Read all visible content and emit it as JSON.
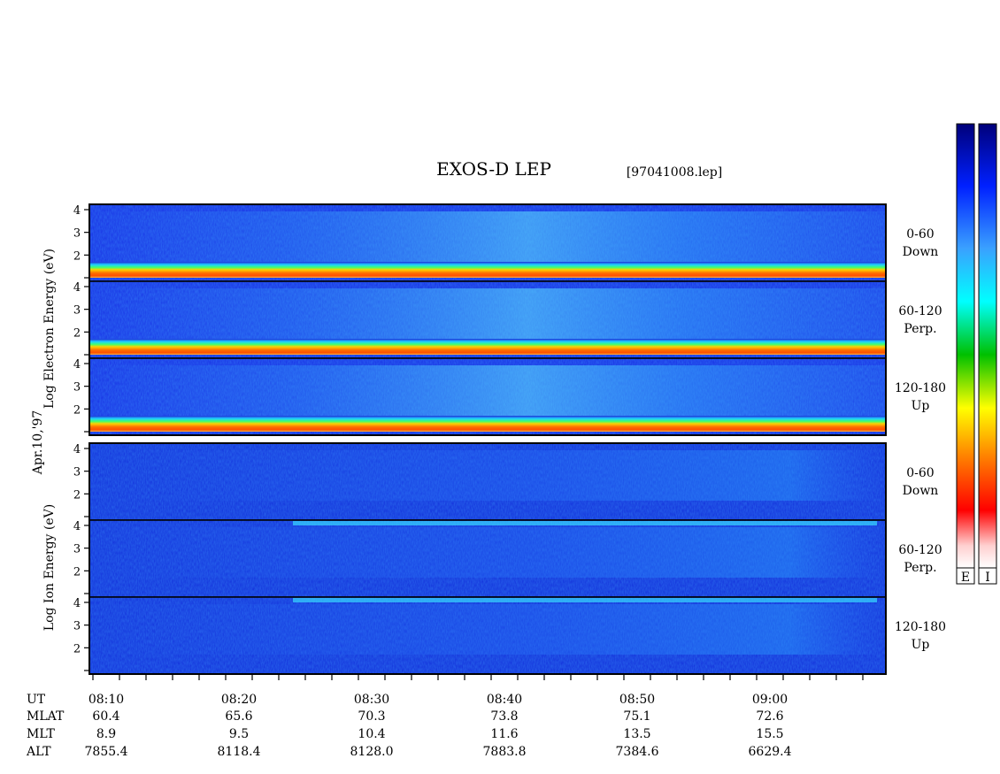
{
  "title": "EXOS-D LEP",
  "file_label": "[97041008.lep]",
  "date_label": "Apr.10,'97",
  "colorbars": {
    "labels": [
      "E",
      "I"
    ]
  },
  "chart_data": {
    "type": "heatmap",
    "y_axis": {
      "scale": "log",
      "ticks": [
        "1",
        "2",
        "3",
        "4"
      ],
      "ylim": [
        1,
        4
      ]
    },
    "groups": [
      {
        "species": "Electron",
        "ylabel_words": [
          "Log",
          "Electron",
          "Energy",
          "(eV)"
        ],
        "panels": [
          {
            "name_line1": "0-60",
            "name_line2": "Down"
          },
          {
            "name_line1": "60-120",
            "name_line2": "Perp."
          },
          {
            "name_line1": "120-180",
            "name_line2": "Up"
          }
        ]
      },
      {
        "species": "Ion",
        "ylabel_words": [
          "Log",
          "Ion",
          "Energy",
          "(eV)"
        ],
        "panels": [
          {
            "name_line1": "0-60",
            "name_line2": "Down"
          },
          {
            "name_line1": "60-120",
            "name_line2": "Perp."
          },
          {
            "name_line1": "120-180",
            "name_line2": "Up"
          }
        ]
      }
    ],
    "x_axis": {
      "row_labels": [
        "UT",
        "MLAT",
        "MLT",
        "ALT"
      ],
      "ticks": [
        {
          "UT": "08:10",
          "MLAT": "60.4",
          "MLT": "8.9",
          "ALT": "7855.4"
        },
        {
          "UT": "08:20",
          "MLAT": "65.6",
          "MLT": "9.5",
          "ALT": "8118.4"
        },
        {
          "UT": "08:30",
          "MLAT": "70.3",
          "MLT": "10.4",
          "ALT": "8128.0"
        },
        {
          "UT": "08:40",
          "MLAT": "73.8",
          "MLT": "11.6",
          "ALT": "7883.8"
        },
        {
          "UT": "08:50",
          "MLAT": "75.1",
          "MLT": "13.5",
          "ALT": "7384.6"
        },
        {
          "UT": "09:00",
          "MLAT": "72.6",
          "MLT": "15.5",
          "ALT": "6629.4"
        }
      ]
    }
  }
}
